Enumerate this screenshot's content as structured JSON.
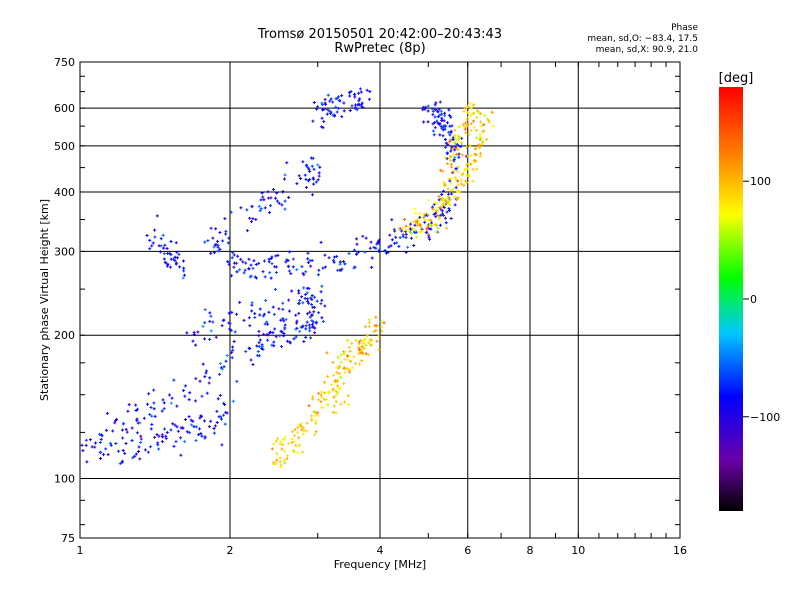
{
  "chart_data": {
    "type": "scatter",
    "title": "Tromsø 20150501 20:42:00–20:43:43",
    "subtitle": "RwPretec (8p)",
    "xlabel": "Frequency [MHz]",
    "ylabel": "Stationary phase Virtual Height [km]",
    "xscale": "log",
    "yscale": "log",
    "xlim": [
      1,
      16
    ],
    "ylim": [
      75,
      750
    ],
    "xticks": [
      1,
      2,
      4,
      6,
      8,
      10,
      16
    ],
    "xtick_labels": [
      "1",
      "2",
      "4",
      "6",
      "8",
      "10",
      "16"
    ],
    "yticks": [
      75,
      100,
      200,
      300,
      400,
      500,
      600,
      750
    ],
    "ytick_labels": [
      "75",
      "100",
      "200",
      "300",
      "400",
      "500",
      "600",
      "750"
    ],
    "xgrid": [
      2,
      4,
      6,
      8,
      10
    ],
    "ygrid": [
      100,
      200,
      300,
      400,
      500,
      600
    ],
    "grid": true,
    "colorbar": {
      "label": "[deg]",
      "range": [
        -180,
        180
      ],
      "ticks": [
        100,
        0,
        -100
      ],
      "tick_labels": [
        "100",
        "0",
        "−100"
      ]
    },
    "phase_stats": {
      "heading": "Phase",
      "o_line": "mean, sd,O: −83.4, 17.5",
      "x_line": "mean, sd,X: 90.9, 21.0"
    },
    "series": [
      {
        "name": "O",
        "phase_mean": -83.4,
        "phase_sd": 17.5,
        "traces": [
          {
            "f": [
              1.0,
              1.2,
              1.4,
              1.6,
              1.8,
              2.0
            ],
            "h": [
              115,
              115,
              120,
              125,
              130,
              140
            ]
          },
          {
            "f": [
              1.1,
              1.3,
              1.6,
              2.0,
              2.3,
              2.6,
              2.9,
              3.0
            ],
            "h": [
              125,
              135,
              150,
              175,
              190,
              200,
              210,
              220
            ]
          },
          {
            "f": [
              1.6,
              2.0,
              2.4,
              2.8,
              3.0
            ],
            "h": [
              200,
              215,
              225,
              240,
              250
            ]
          },
          {
            "f": [
              2.0,
              2.2,
              2.5,
              3.0,
              3.5,
              4.0,
              4.5,
              5.0,
              5.3,
              5.6
            ],
            "h": [
              278,
              277,
              279,
              285,
              295,
              308,
              322,
              345,
              365,
              395
            ]
          },
          {
            "f": [
              1.8,
              2.0,
              2.4,
              2.8,
              3.0
            ],
            "h": [
              300,
              330,
              380,
              430,
              440
            ]
          },
          {
            "f": [
              1.4,
              1.5,
              1.6
            ],
            "h": [
              330,
              300,
              280
            ]
          },
          {
            "f": [
              3.0,
              3.2,
              3.5,
              3.8
            ],
            "h": [
              580,
              600,
              620,
              630
            ]
          },
          {
            "f": [
              5.0,
              5.2,
              5.4,
              5.6,
              5.8
            ],
            "h": [
              600,
              580,
              550,
              500,
              460
            ]
          }
        ]
      },
      {
        "name": "X",
        "phase_mean": 90.9,
        "phase_sd": 21.0,
        "traces": [
          {
            "f": [
              2.4,
              2.6,
              2.8,
              3.0,
              3.2,
              3.4
            ],
            "h": [
              110,
              115,
              125,
              140,
              150,
              160
            ]
          },
          {
            "f": [
              3.2,
              3.4,
              3.6,
              3.8,
              4.0
            ],
            "h": [
              165,
              175,
              185,
              195,
              210
            ]
          },
          {
            "f": [
              4.5,
              4.8,
              5.1,
              5.4,
              5.7,
              6.0,
              6.3,
              6.6
            ],
            "h": [
              330,
              345,
              360,
              380,
              410,
              450,
              500,
              560
            ]
          },
          {
            "f": [
              5.5,
              5.7,
              6.0,
              6.2
            ],
            "h": [
              440,
              500,
              560,
              620
            ]
          }
        ]
      }
    ]
  }
}
